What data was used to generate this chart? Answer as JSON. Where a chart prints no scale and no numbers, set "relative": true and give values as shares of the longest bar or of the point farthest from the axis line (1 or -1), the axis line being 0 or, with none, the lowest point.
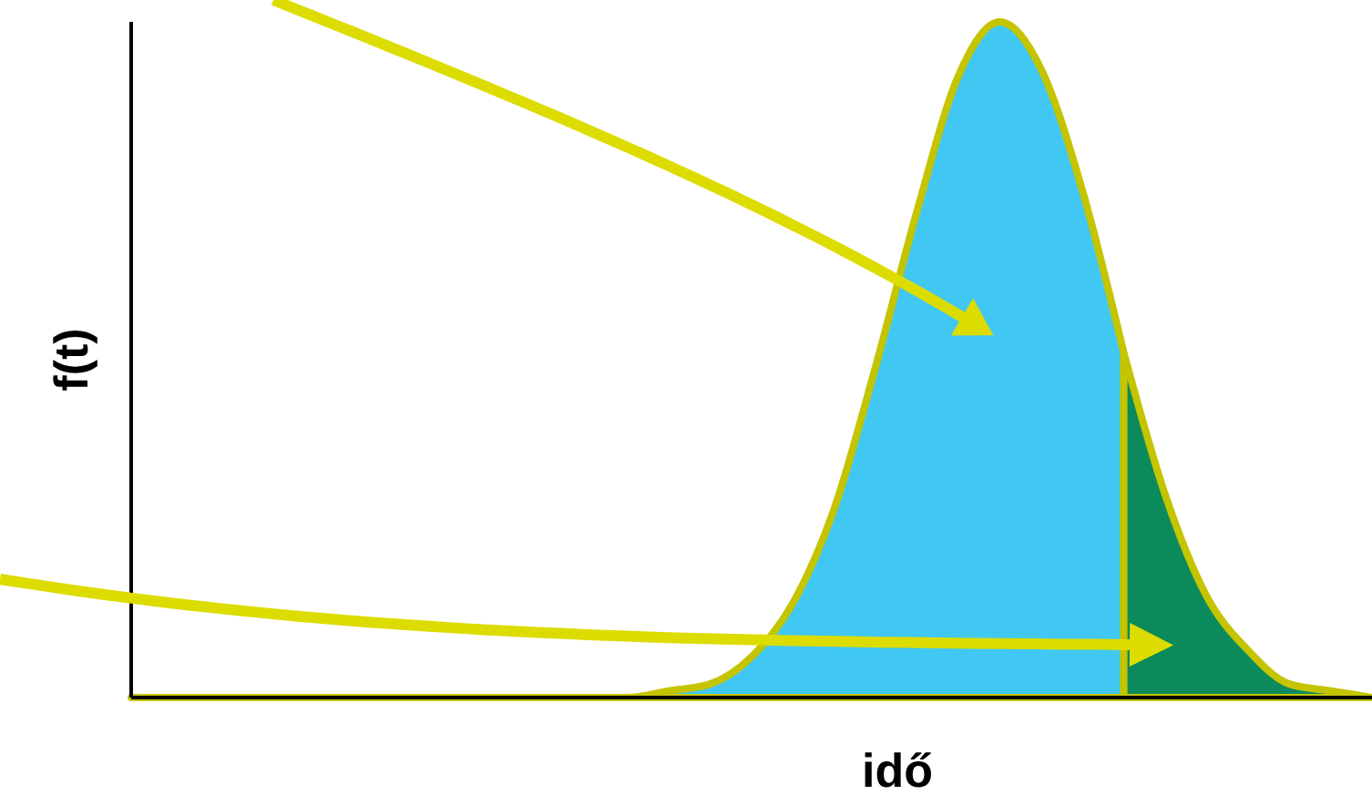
{
  "chart_data": {
    "type": "area",
    "relative": true,
    "xlabel": "idő",
    "ylabel": "f(t)",
    "categories": [
      null,
      null,
      null,
      null,
      null,
      null,
      null,
      null,
      null,
      null,
      null,
      null,
      null,
      null,
      null,
      null,
      null,
      null,
      null,
      null,
      null,
      null,
      null,
      null,
      null,
      null,
      null,
      null,
      null,
      null,
      null
    ],
    "series": [
      {
        "color": "#40c8f2",
        "values": [
          0,
          0,
          0,
          0,
          0,
          0,
          0,
          0,
          0,
          0,
          0,
          0,
          0,
          0.01,
          0.02,
          0.06,
          0.14,
          0.28,
          0.49,
          0.72,
          0.92,
          1,
          0.93,
          0.75,
          0.51,
          null,
          null,
          null,
          null,
          null,
          null
        ]
      },
      {
        "color": "#0b8a5c",
        "values": [
          null,
          null,
          null,
          null,
          null,
          null,
          null,
          null,
          null,
          null,
          null,
          null,
          null,
          null,
          null,
          null,
          null,
          null,
          null,
          null,
          null,
          null,
          null,
          null,
          0.51,
          0.3,
          0.15,
          0.07,
          0.02,
          0.01,
          0
        ]
      }
    ]
  }
}
